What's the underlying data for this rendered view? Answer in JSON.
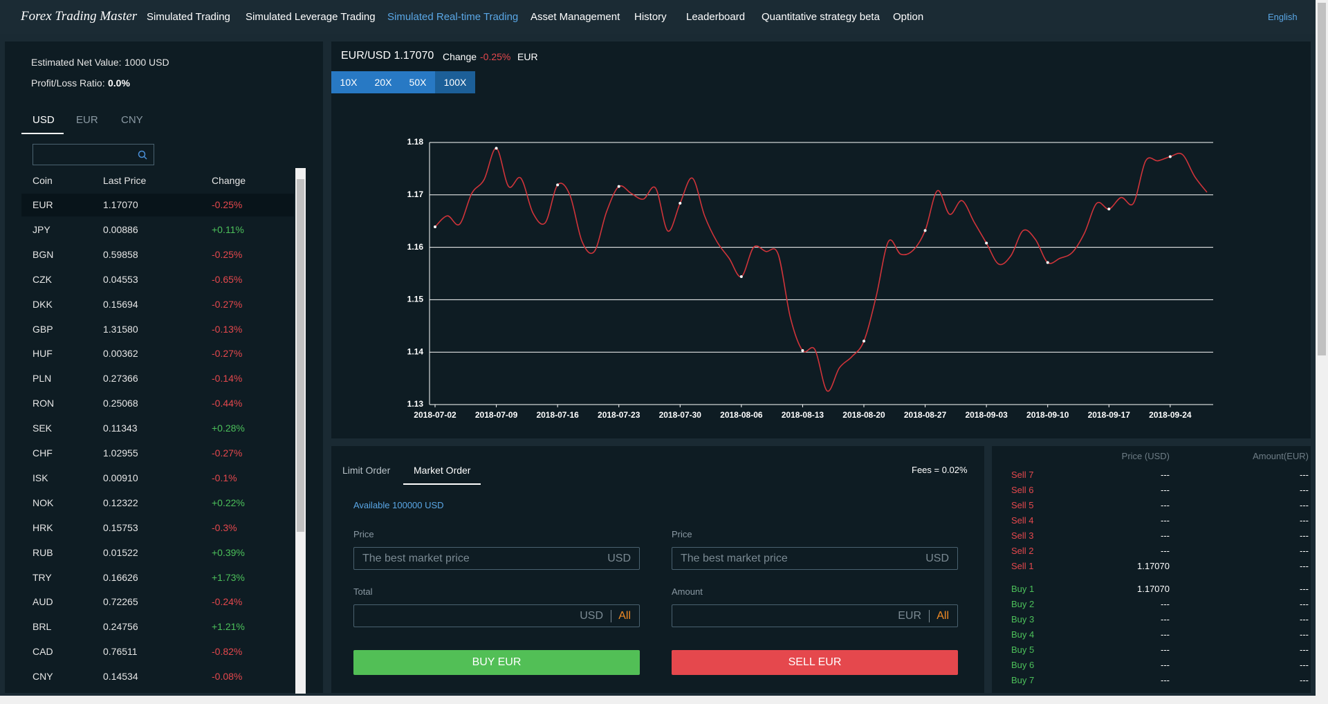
{
  "nav": {
    "brand": "Forex Trading Master",
    "items": [
      "Simulated Trading",
      "Simulated Leverage Trading",
      "Simulated Real-time Trading",
      "Asset Management",
      "History",
      "Leaderboard",
      "Quantitative strategy beta",
      "Option"
    ],
    "language": "English"
  },
  "account": {
    "net_value_label": "Estimated Net Value:",
    "net_value": "1000 USD",
    "ratio_label": "Profit/Loss Ratio:",
    "ratio": "0.0%"
  },
  "currency_tabs": [
    "USD",
    "EUR",
    "CNY"
  ],
  "table": {
    "columns": [
      "Coin",
      "Last Price",
      "Change"
    ],
    "rows": [
      [
        "EUR",
        "1.17070",
        "-0.25%"
      ],
      [
        "JPY",
        "0.00886",
        "+0.11%"
      ],
      [
        "BGN",
        "0.59858",
        "-0.25%"
      ],
      [
        "CZK",
        "0.04553",
        "-0.65%"
      ],
      [
        "DKK",
        "0.15694",
        "-0.27%"
      ],
      [
        "GBP",
        "1.31580",
        "-0.13%"
      ],
      [
        "HUF",
        "0.00362",
        "-0.27%"
      ],
      [
        "PLN",
        "0.27366",
        "-0.14%"
      ],
      [
        "RON",
        "0.25068",
        "-0.44%"
      ],
      [
        "SEK",
        "0.11343",
        "+0.28%"
      ],
      [
        "CHF",
        "1.02955",
        "-0.27%"
      ],
      [
        "ISK",
        "0.00910",
        "-0.1%"
      ],
      [
        "NOK",
        "0.12322",
        "+0.22%"
      ],
      [
        "HRK",
        "0.15753",
        "-0.3%"
      ],
      [
        "RUB",
        "0.01522",
        "+0.39%"
      ],
      [
        "TRY",
        "0.16626",
        "+1.73%"
      ],
      [
        "AUD",
        "0.72265",
        "-0.24%"
      ],
      [
        "BRL",
        "0.24756",
        "+1.21%"
      ],
      [
        "CAD",
        "0.76511",
        "-0.82%"
      ],
      [
        "CNY",
        "0.14534",
        "-0.08%"
      ]
    ]
  },
  "chart_header": {
    "pair": "EUR/USD 1.17070",
    "change_label": "Change",
    "change": "-0.25%",
    "unit": "EUR"
  },
  "leverage": [
    "10X",
    "20X",
    "50X",
    "100X"
  ],
  "chart_data": {
    "type": "line",
    "color": "#d0343a",
    "grid": true,
    "categories": [
      "2018-07-02",
      null,
      null,
      null,
      null,
      "2018-07-09",
      null,
      null,
      null,
      null,
      "2018-07-16",
      null,
      null,
      null,
      null,
      "2018-07-23",
      null,
      null,
      null,
      null,
      "2018-07-30",
      null,
      null,
      null,
      null,
      "2018-08-06",
      null,
      null,
      null,
      null,
      "2018-08-13",
      null,
      null,
      null,
      null,
      "2018-08-20",
      null,
      null,
      null,
      null,
      "2018-08-27",
      null,
      null,
      null,
      null,
      "2018-09-03",
      null,
      null,
      null,
      null,
      "2018-09-10",
      null,
      null,
      null,
      null,
      "2018-09-17",
      null,
      null,
      null,
      null,
      "2018-09-24",
      null,
      null,
      null
    ],
    "values": [
      1.1639,
      1.166,
      1.1644,
      1.1703,
      1.1729,
      1.1789,
      1.1716,
      1.1732,
      1.1665,
      1.1647,
      1.1719,
      1.17,
      1.1611,
      1.1592,
      1.1668,
      1.1716,
      1.1703,
      1.1692,
      1.1713,
      1.1631,
      1.1684,
      1.1732,
      1.166,
      1.1611,
      1.1579,
      1.1544,
      1.16,
      1.1592,
      1.1587,
      1.1466,
      1.1403,
      1.1405,
      1.1326,
      1.137,
      1.1391,
      1.1421,
      1.1506,
      1.1611,
      1.1587,
      1.1594,
      1.1632,
      1.1708,
      1.1663,
      1.1689,
      1.1648,
      1.1608,
      1.1568,
      1.1584,
      1.1632,
      1.1615,
      1.1571,
      1.1579,
      1.159,
      1.1627,
      1.1684,
      1.1673,
      1.1695,
      1.1684,
      1.1765,
      1.1765,
      1.1773,
      1.1777,
      1.1735,
      1.1705
    ],
    "ylim": [
      1.13,
      1.18
    ],
    "yticks": [
      1.13,
      1.14,
      1.15,
      1.16,
      1.17,
      1.18
    ]
  },
  "order": {
    "tabs": [
      "Limit Order",
      "Market Order"
    ],
    "fees": "Fees = 0.02%",
    "available": "Available 100000 USD",
    "buy": {
      "fields": [
        {
          "label": "Price",
          "placeholder": "The best market price",
          "unit": "USD"
        },
        {
          "label": "Total",
          "unit": "USD",
          "all": "All"
        }
      ],
      "button": "BUY EUR"
    },
    "sell": {
      "fields": [
        {
          "label": "Price",
          "placeholder": "The best market price",
          "unit": "USD"
        },
        {
          "label": "Amount",
          "unit": "EUR",
          "all": "All"
        }
      ],
      "button": "SELL EUR"
    }
  },
  "order_book": {
    "columns": [
      "Price (USD)",
      "Amount(EUR)"
    ],
    "sell": [
      {
        "name": "Sell 7",
        "price": "---",
        "amount": "---"
      },
      {
        "name": "Sell 6",
        "price": "---",
        "amount": "---"
      },
      {
        "name": "Sell 5",
        "price": "---",
        "amount": "---"
      },
      {
        "name": "Sell 4",
        "price": "---",
        "amount": "---"
      },
      {
        "name": "Sell 3",
        "price": "---",
        "amount": "---"
      },
      {
        "name": "Sell 2",
        "price": "---",
        "amount": "---"
      },
      {
        "name": "Sell 1",
        "price": "1.17070",
        "amount": "---"
      }
    ],
    "buy": [
      {
        "name": "Buy 1",
        "price": "1.17070",
        "amount": "---"
      },
      {
        "name": "Buy 2",
        "price": "---",
        "amount": "---"
      },
      {
        "name": "Buy 3",
        "price": "---",
        "amount": "---"
      },
      {
        "name": "Buy 4",
        "price": "---",
        "amount": "---"
      },
      {
        "name": "Buy 5",
        "price": "---",
        "amount": "---"
      },
      {
        "name": "Buy 6",
        "price": "---",
        "amount": "---"
      },
      {
        "name": "Buy 7",
        "price": "---",
        "amount": "---"
      }
    ]
  }
}
